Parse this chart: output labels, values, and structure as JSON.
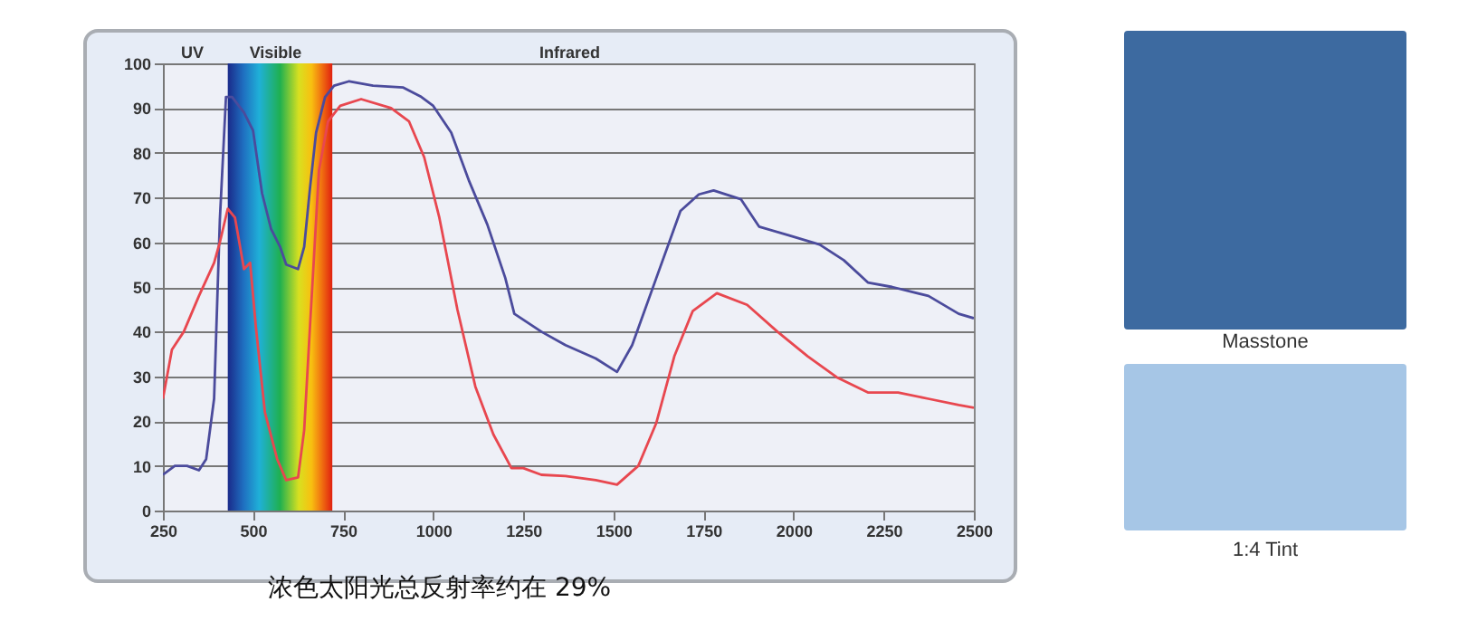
{
  "chart_data": {
    "type": "line",
    "xlim": [
      250,
      2500
    ],
    "xticks": [
      250,
      500,
      750,
      1000,
      1250,
      1500,
      1750,
      2000,
      2250,
      2500
    ],
    "ylim": [
      0,
      100
    ],
    "yticks": [
      0,
      10,
      20,
      30,
      40,
      50,
      60,
      70,
      80,
      90,
      100
    ],
    "grid": "y",
    "marker": "none",
    "line_style": "solid",
    "series": [
      {
        "color": "#4b4b9c",
        "x": [
          250,
          283,
          317,
          350,
          370,
          392,
          408,
          425,
          442,
          475,
          500,
          525,
          550,
          575,
          592,
          625,
          642,
          658,
          675,
          700,
          725,
          767,
          833,
          917,
          967,
          1000,
          1050,
          1100,
          1150,
          1200,
          1225,
          1300,
          1367,
          1451,
          1510,
          1552,
          1619,
          1686,
          1737,
          1778,
          1854,
          1904,
          1988,
          2072,
          2139,
          2206,
          2273,
          2374,
          2458,
          2500
        ],
        "values": [
          8,
          10,
          10,
          9,
          11.5,
          25,
          65,
          92.5,
          92.5,
          89,
          85,
          71,
          63,
          59,
          55,
          54,
          59,
          72,
          84.5,
          92.5,
          95,
          96,
          95,
          94.6,
          92.5,
          90.5,
          84.5,
          73.6,
          64,
          52,
          44,
          40,
          37,
          34,
          31,
          37,
          52,
          67,
          70.7,
          71.6,
          69.6,
          63.5,
          61.5,
          59.5,
          56,
          51,
          50,
          48,
          44,
          43
        ]
      },
      {
        "color": "#e8474f",
        "x": [
          250,
          275,
          308,
          350,
          392,
          408,
          430,
          450,
          475,
          492,
          508,
          533,
          567,
          592,
          625,
          642,
          658,
          683,
          708,
          742,
          800,
          883,
          933,
          975,
          1017,
          1067,
          1117,
          1167,
          1217,
          1250,
          1300,
          1367,
          1451,
          1510,
          1569,
          1619,
          1669,
          1720,
          1787,
          1871,
          1955,
          2039,
          2122,
          2206,
          2290,
          2374,
          2458,
          2500
        ],
        "values": [
          25,
          36,
          40,
          48,
          55.4,
          60,
          67.5,
          65.5,
          54,
          55.4,
          41,
          22,
          11.5,
          6.8,
          7.4,
          18,
          41,
          76,
          87,
          90.5,
          92,
          90,
          87,
          79,
          65.5,
          45,
          27.7,
          17,
          9.5,
          9.5,
          8,
          7.7,
          6.8,
          5.8,
          10,
          19.6,
          34.5,
          44.6,
          48.6,
          46,
          40,
          34.5,
          29.7,
          26.4,
          26.4,
          25,
          23.6,
          23
        ]
      }
    ],
    "bands": [
      {
        "axis": "x",
        "from": 430,
        "to": 720,
        "label": "Visible"
      }
    ],
    "annotations": [
      "UV",
      "Infrared",
      "浓色太阳光总反射率约在 29%",
      "Masstone",
      "1:4 Tint"
    ]
  }
}
